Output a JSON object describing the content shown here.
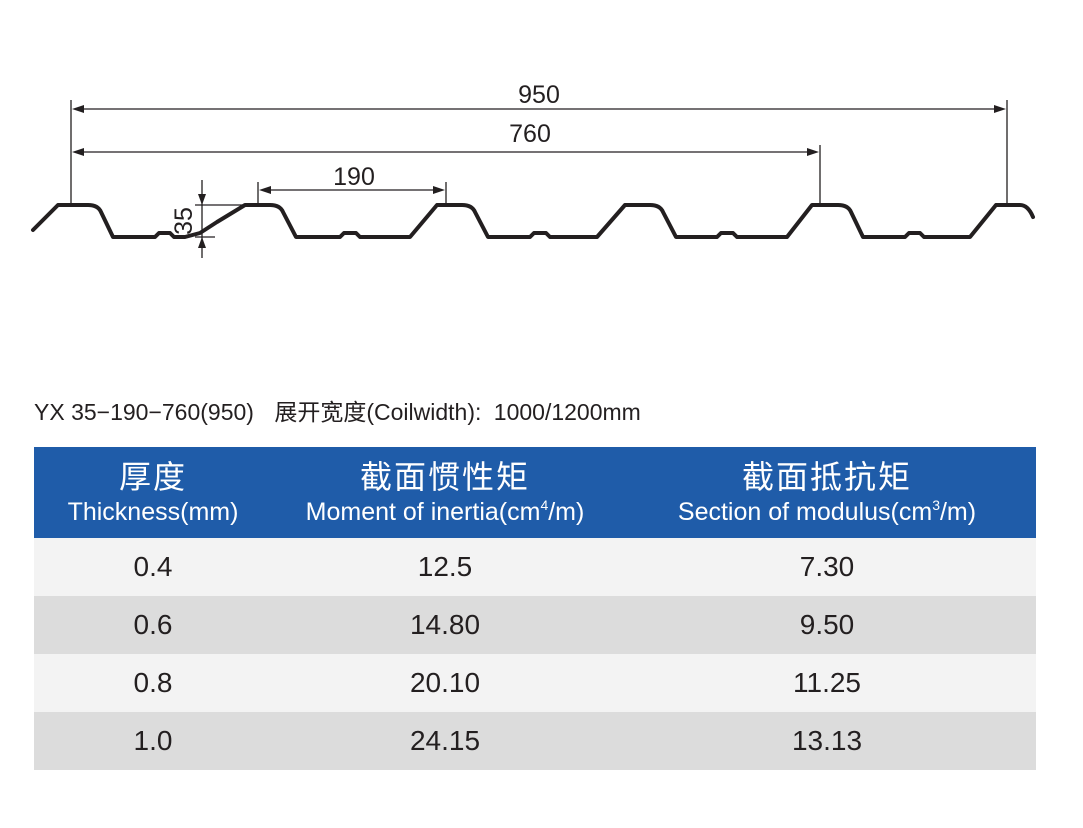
{
  "drawing": {
    "dim_overall": "950",
    "dim_cover": "760",
    "dim_pitch": "190",
    "dim_height": "35"
  },
  "spec": {
    "model": "YX 35−190−760(950)",
    "coil_label": "展开宽度(Coilwidth):",
    "coil_value": "1000/1200mm"
  },
  "table": {
    "headers": [
      {
        "cn": "厚度",
        "en": "Thickness(mm)",
        "sup": "",
        "en_tail": ""
      },
      {
        "cn": "截面惯性矩",
        "en": "Moment of inertia(cm",
        "sup": "4",
        "en_tail": "/m)"
      },
      {
        "cn": "截面抵抗矩",
        "en": "Section of modulus(cm",
        "sup": "3",
        "en_tail": "/m)"
      }
    ],
    "rows": [
      [
        "0.4",
        "12.5",
        "7.30"
      ],
      [
        "0.6",
        "14.80",
        "9.50"
      ],
      [
        "0.8",
        "20.10",
        "11.25"
      ],
      [
        "1.0",
        "24.15",
        "13.13"
      ]
    ]
  }
}
